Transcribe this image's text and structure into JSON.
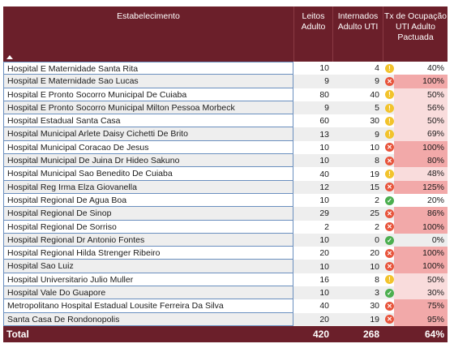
{
  "header": {
    "col_establishment": "Estabelecimento",
    "col_beds": "Leitos Adulto",
    "col_admitted": "Internados Adulto UTI",
    "col_rate": "Tx de Ocupação UTI Adulto Pactuada"
  },
  "rows": [
    {
      "name": "Hospital E Maternidade Santa Rita",
      "beds": "10",
      "admitted": "4",
      "rate": "40%",
      "status": "warn",
      "shade": "none"
    },
    {
      "name": "Hospital E Maternidade Sao Lucas",
      "beds": "9",
      "admitted": "9",
      "rate": "100%",
      "status": "bad",
      "shade": "red"
    },
    {
      "name": "Hospital E Pronto Socorro Municipal De Cuiaba",
      "beds": "80",
      "admitted": "40",
      "rate": "50%",
      "status": "warn",
      "shade": "pink"
    },
    {
      "name": "Hospital E Pronto Socorro Municipal Milton Pessoa Morbeck",
      "beds": "9",
      "admitted": "5",
      "rate": "56%",
      "status": "warn",
      "shade": "pink"
    },
    {
      "name": "Hospital Estadual Santa Casa",
      "beds": "60",
      "admitted": "30",
      "rate": "50%",
      "status": "warn",
      "shade": "pink"
    },
    {
      "name": "Hospital Municipal Arlete Daisy Cichetti De Brito",
      "beds": "13",
      "admitted": "9",
      "rate": "69%",
      "status": "warn",
      "shade": "pink"
    },
    {
      "name": "Hospital Municipal Coracao De Jesus",
      "beds": "10",
      "admitted": "10",
      "rate": "100%",
      "status": "bad",
      "shade": "red"
    },
    {
      "name": "Hospital Municipal De Juina Dr Hideo Sakuno",
      "beds": "10",
      "admitted": "8",
      "rate": "80%",
      "status": "bad",
      "shade": "red"
    },
    {
      "name": "Hospital Municipal Sao Benedito De Cuiaba",
      "beds": "40",
      "admitted": "19",
      "rate": "48%",
      "status": "warn",
      "shade": "pink"
    },
    {
      "name": "Hospital Reg Irma Elza Giovanella",
      "beds": "12",
      "admitted": "15",
      "rate": "125%",
      "status": "bad",
      "shade": "red"
    },
    {
      "name": "Hospital Regional De Agua Boa",
      "beds": "10",
      "admitted": "2",
      "rate": "20%",
      "status": "good",
      "shade": "none"
    },
    {
      "name": "Hospital Regional De Sinop",
      "beds": "29",
      "admitted": "25",
      "rate": "86%",
      "status": "bad",
      "shade": "red"
    },
    {
      "name": "Hospital Regional De Sorriso",
      "beds": "2",
      "admitted": "2",
      "rate": "100%",
      "status": "bad",
      "shade": "red"
    },
    {
      "name": "Hospital Regional Dr Antonio Fontes",
      "beds": "10",
      "admitted": "0",
      "rate": "0%",
      "status": "good",
      "shade": "none"
    },
    {
      "name": "Hospital Regional Hilda Strenger Ribeiro",
      "beds": "20",
      "admitted": "20",
      "rate": "100%",
      "status": "bad",
      "shade": "red"
    },
    {
      "name": "Hospital Sao Luiz",
      "beds": "10",
      "admitted": "10",
      "rate": "100%",
      "status": "bad",
      "shade": "red"
    },
    {
      "name": "Hospital Universitario Julio Muller",
      "beds": "16",
      "admitted": "8",
      "rate": "50%",
      "status": "warn",
      "shade": "pink"
    },
    {
      "name": "Hospital Vale Do Guapore",
      "beds": "10",
      "admitted": "3",
      "rate": "30%",
      "status": "good",
      "shade": "pink"
    },
    {
      "name": "Metropolitano Hospital Estadual Lousite Ferreira Da Silva",
      "beds": "40",
      "admitted": "30",
      "rate": "75%",
      "status": "bad",
      "shade": "red"
    },
    {
      "name": "Santa Casa De Rondonopolis",
      "beds": "20",
      "admitted": "19",
      "rate": "95%",
      "status": "bad",
      "shade": "red"
    }
  ],
  "total": {
    "label": "Total",
    "beds": "420",
    "admitted": "268",
    "rate": "64%"
  },
  "colors": {
    "header_bg": "#6b1f2a",
    "warn": "#f2c32c",
    "bad": "#e8543b",
    "good": "#4caf50",
    "red_cell": "#f2a9a9",
    "pink_cell": "#f9dcdc"
  },
  "icons": {
    "warn": "warning-circle-icon",
    "bad": "x-circle-icon",
    "good": "check-circle-icon",
    "sort": "sort-asc-icon"
  }
}
